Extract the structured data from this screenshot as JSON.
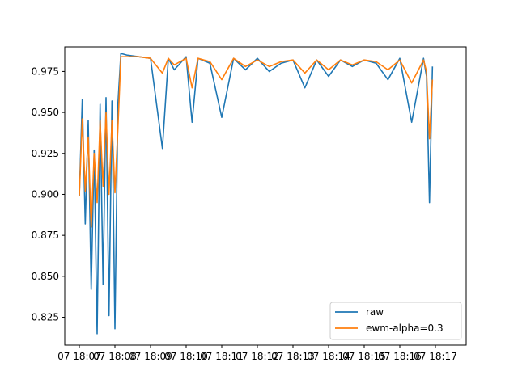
{
  "chart_data": {
    "type": "line",
    "title": "",
    "xlabel": "",
    "ylabel": "",
    "x_range": [
      "07 18:07",
      "07 18:17"
    ],
    "ylim": [
      0.808,
      0.99
    ],
    "x_ticks": [
      "07 18:07",
      "07 18:08",
      "07 18:09",
      "07 18:10",
      "07 18:11",
      "07 18:12",
      "07 18:13",
      "07 18:14",
      "07 18:15",
      "07 18:16",
      "07 18:17"
    ],
    "y_ticks": [
      "0.825",
      "0.850",
      "0.875",
      "0.900",
      "0.925",
      "0.950",
      "0.975"
    ],
    "legend_position": "lower right",
    "grid": false,
    "series": [
      {
        "name": "raw",
        "color": "#1f77b4",
        "x": [
          "18:07:00",
          "18:07:05",
          "18:07:10",
          "18:07:15",
          "18:07:20",
          "18:07:25",
          "18:07:30",
          "18:07:35",
          "18:07:40",
          "18:07:45",
          "18:07:50",
          "18:07:55",
          "18:08:00",
          "18:08:05",
          "18:08:10",
          "18:08:20",
          "18:08:40",
          "18:09:00",
          "18:09:20",
          "18:09:30",
          "18:09:40",
          "18:10:00",
          "18:10:10",
          "18:10:20",
          "18:10:40",
          "18:11:00",
          "18:11:20",
          "18:11:40",
          "18:12:00",
          "18:12:20",
          "18:12:40",
          "18:13:00",
          "18:13:20",
          "18:13:40",
          "18:14:00",
          "18:14:20",
          "18:14:40",
          "18:15:00",
          "18:15:20",
          "18:15:40",
          "18:16:00",
          "18:16:20",
          "18:16:40",
          "18:16:45",
          "18:16:50",
          "18:16:55"
        ],
        "values": [
          0.899,
          0.958,
          0.882,
          0.945,
          0.842,
          0.927,
          0.815,
          0.955,
          0.845,
          0.959,
          0.826,
          0.957,
          0.818,
          0.955,
          0.986,
          0.985,
          0.984,
          0.983,
          0.928,
          0.983,
          0.976,
          0.984,
          0.944,
          0.983,
          0.98,
          0.947,
          0.983,
          0.976,
          0.983,
          0.975,
          0.98,
          0.982,
          0.965,
          0.982,
          0.972,
          0.982,
          0.978,
          0.982,
          0.98,
          0.97,
          0.983,
          0.944,
          0.983,
          0.972,
          0.895,
          0.978
        ]
      },
      {
        "name": "ewm-alpha=0.3",
        "color": "#ff7f0e",
        "x": [
          "18:07:00",
          "18:07:05",
          "18:07:10",
          "18:07:15",
          "18:07:20",
          "18:07:25",
          "18:07:30",
          "18:07:35",
          "18:07:40",
          "18:07:45",
          "18:07:50",
          "18:07:55",
          "18:08:00",
          "18:08:05",
          "18:08:10",
          "18:08:20",
          "18:08:40",
          "18:09:00",
          "18:09:20",
          "18:09:30",
          "18:09:40",
          "18:10:00",
          "18:10:10",
          "18:10:20",
          "18:10:40",
          "18:11:00",
          "18:11:20",
          "18:11:40",
          "18:12:00",
          "18:12:20",
          "18:12:40",
          "18:13:00",
          "18:13:20",
          "18:13:40",
          "18:14:00",
          "18:14:20",
          "18:14:40",
          "18:15:00",
          "18:15:20",
          "18:15:40",
          "18:16:00",
          "18:16:20",
          "18:16:40",
          "18:16:45",
          "18:16:50",
          "18:16:55"
        ],
        "values": [
          0.899,
          0.946,
          0.902,
          0.935,
          0.88,
          0.925,
          0.895,
          0.945,
          0.905,
          0.95,
          0.9,
          0.945,
          0.901,
          0.94,
          0.984,
          0.984,
          0.984,
          0.983,
          0.974,
          0.983,
          0.979,
          0.983,
          0.965,
          0.983,
          0.981,
          0.97,
          0.983,
          0.978,
          0.982,
          0.978,
          0.981,
          0.982,
          0.974,
          0.982,
          0.976,
          0.982,
          0.979,
          0.982,
          0.981,
          0.976,
          0.982,
          0.968,
          0.982,
          0.975,
          0.934,
          0.97
        ]
      }
    ]
  }
}
